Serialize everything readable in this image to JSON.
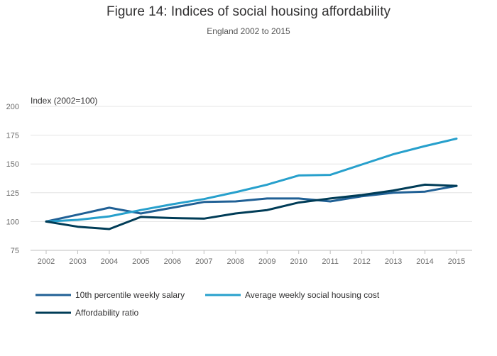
{
  "chart_data": {
    "type": "line",
    "title": "Figure 14: Indices of social housing affordability",
    "subtitle": "England 2002 to 2015",
    "ylabel": "Index (2002=100)",
    "xlabel": "",
    "x": [
      "2002",
      "2003",
      "2004",
      "2005",
      "2006",
      "2007",
      "2008",
      "2009",
      "2010",
      "2011",
      "2012",
      "2013",
      "2014",
      "2015"
    ],
    "ylim": [
      75,
      200
    ],
    "yticks": [
      75,
      100,
      125,
      150,
      175,
      200
    ],
    "grid": true,
    "legend_position": "bottom",
    "series": [
      {
        "name": "10th percentile weekly salary",
        "color": "#206095",
        "values": [
          100,
          106,
          112,
          107,
          112,
          117,
          117.5,
          120,
          120,
          117.5,
          122,
          125,
          126,
          131
        ]
      },
      {
        "name": "Average weekly social housing cost",
        "color": "#27a0cc",
        "values": [
          100,
          101.5,
          104.5,
          110,
          115,
          119.5,
          125.5,
          132,
          140,
          140.5,
          149.5,
          158.5,
          165.5,
          172
        ]
      },
      {
        "name": "Affordability ratio",
        "color": "#003c57",
        "values": [
          100,
          95.5,
          93.5,
          104,
          103,
          102.5,
          107,
          110,
          116.5,
          120,
          123,
          127,
          132,
          131
        ]
      }
    ]
  }
}
